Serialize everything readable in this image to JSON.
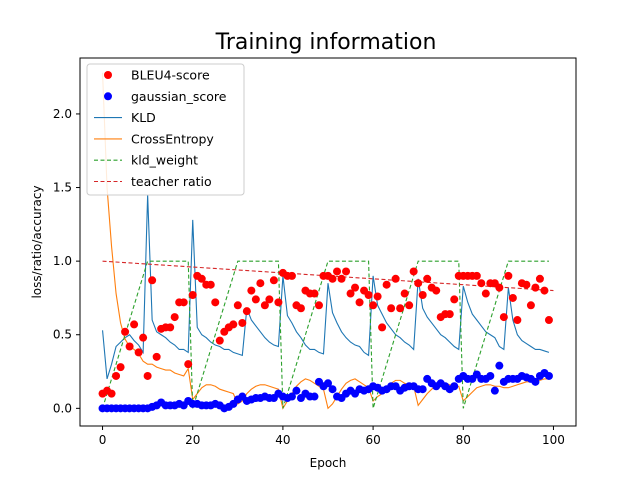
{
  "chart_data": {
    "type": "line",
    "title": "Training information",
    "xlabel": "Epoch",
    "ylabel": "loss/ratio/accuracy",
    "xlim": [
      -5,
      105
    ],
    "ylim": [
      -0.12,
      2.38
    ],
    "xticks": [
      0,
      20,
      40,
      60,
      80,
      100
    ],
    "yticks": [
      0.0,
      0.5,
      1.0,
      1.5,
      2.0
    ],
    "xtick_labels": [
      "0",
      "20",
      "40",
      "60",
      "80",
      "100"
    ],
    "ytick_labels": [
      "0.0",
      "0.5",
      "1.0",
      "1.5",
      "2.0"
    ],
    "grid": false,
    "legend_position": "top-left",
    "colors": {
      "bleu": "#ff0000",
      "gaussian": "#0000ff",
      "kld": "#1f77b4",
      "ce": "#ff7f0e",
      "kldw": "#2ca02c",
      "teacher": "#d62728"
    },
    "series": [
      {
        "name": "BLEU4-score",
        "kind": "scatter",
        "color_key": "bleu",
        "x": [
          0,
          1,
          2,
          3,
          4,
          5,
          6,
          7,
          8,
          9,
          10,
          11,
          12,
          13,
          14,
          15,
          16,
          17,
          18,
          19,
          20,
          21,
          22,
          23,
          24,
          25,
          26,
          27,
          28,
          29,
          30,
          31,
          32,
          33,
          34,
          35,
          36,
          37,
          38,
          39,
          40,
          41,
          42,
          43,
          44,
          45,
          46,
          47,
          48,
          49,
          50,
          51,
          52,
          53,
          54,
          55,
          56,
          57,
          58,
          59,
          60,
          61,
          62,
          63,
          64,
          65,
          66,
          67,
          68,
          69,
          70,
          71,
          72,
          73,
          74,
          75,
          76,
          77,
          78,
          79,
          80,
          81,
          82,
          83,
          84,
          85,
          86,
          87,
          88,
          89,
          90,
          91,
          92,
          93,
          94,
          95,
          96,
          97,
          98,
          99
        ],
        "y": [
          0.1,
          0.12,
          0.1,
          0.22,
          0.28,
          0.52,
          0.42,
          0.57,
          0.38,
          0.48,
          0.22,
          0.87,
          0.35,
          0.54,
          0.55,
          0.55,
          0.62,
          0.72,
          0.72,
          0.3,
          0.77,
          0.9,
          0.88,
          0.84,
          0.84,
          0.72,
          0.46,
          0.52,
          0.55,
          0.57,
          0.7,
          0.58,
          0.66,
          0.8,
          0.74,
          0.85,
          0.7,
          0.74,
          0.87,
          0.72,
          0.92,
          0.9,
          0.9,
          0.7,
          0.68,
          0.8,
          0.78,
          0.78,
          0.7,
          0.9,
          0.9,
          0.88,
          0.93,
          0.88,
          0.93,
          0.78,
          0.82,
          0.72,
          0.8,
          0.77,
          0.7,
          0.76,
          0.55,
          0.84,
          0.68,
          0.88,
          0.68,
          0.78,
          0.7,
          0.93,
          0.85,
          0.77,
          0.88,
          0.82,
          0.8,
          0.62,
          0.64,
          0.64,
          0.74,
          0.9,
          0.9,
          0.9,
          0.9,
          0.9,
          0.85,
          0.78,
          0.85,
          0.85,
          0.82,
          0.62,
          0.9,
          0.75,
          0.6,
          0.85,
          0.84,
          0.7,
          0.82,
          0.88,
          0.8,
          0.6
        ]
      },
      {
        "name": "gaussian_score",
        "kind": "scatter",
        "color_key": "gaussian",
        "x": [
          0,
          1,
          2,
          3,
          4,
          5,
          6,
          7,
          8,
          9,
          10,
          11,
          12,
          13,
          14,
          15,
          16,
          17,
          18,
          19,
          20,
          21,
          22,
          23,
          24,
          25,
          26,
          27,
          28,
          29,
          30,
          31,
          32,
          33,
          34,
          35,
          36,
          37,
          38,
          39,
          40,
          41,
          42,
          43,
          44,
          45,
          46,
          47,
          48,
          49,
          50,
          51,
          52,
          53,
          54,
          55,
          56,
          57,
          58,
          59,
          60,
          61,
          62,
          63,
          64,
          65,
          66,
          67,
          68,
          69,
          70,
          71,
          72,
          73,
          74,
          75,
          76,
          77,
          78,
          79,
          80,
          81,
          82,
          83,
          84,
          85,
          86,
          87,
          88,
          89,
          90,
          91,
          92,
          93,
          94,
          95,
          96,
          97,
          98,
          99
        ],
        "y": [
          0.0,
          0.0,
          0.0,
          0.0,
          0.0,
          0.0,
          0.0,
          0.0,
          0.0,
          0.0,
          0.0,
          0.01,
          0.02,
          0.04,
          0.02,
          0.02,
          0.02,
          0.03,
          0.02,
          0.05,
          0.03,
          0.03,
          0.02,
          0.02,
          0.02,
          0.03,
          0.02,
          0.0,
          0.01,
          0.03,
          0.06,
          0.08,
          0.05,
          0.06,
          0.07,
          0.07,
          0.08,
          0.07,
          0.07,
          0.1,
          0.08,
          0.07,
          0.08,
          0.12,
          0.07,
          0.1,
          0.08,
          0.08,
          0.18,
          0.15,
          0.17,
          0.13,
          0.08,
          0.07,
          0.1,
          0.12,
          0.1,
          0.13,
          0.12,
          0.13,
          0.15,
          0.14,
          0.12,
          0.13,
          0.15,
          0.15,
          0.12,
          0.14,
          0.15,
          0.15,
          0.13,
          0.13,
          0.2,
          0.17,
          0.15,
          0.17,
          0.15,
          0.13,
          0.15,
          0.2,
          0.22,
          0.2,
          0.2,
          0.23,
          0.2,
          0.2,
          0.22,
          0.12,
          0.29,
          0.18,
          0.2,
          0.2,
          0.2,
          0.22,
          0.21,
          0.2,
          0.18,
          0.22,
          0.24,
          0.22
        ]
      },
      {
        "name": "KLD",
        "kind": "line",
        "color_key": "kld",
        "x": [
          0,
          1,
          2,
          3,
          4,
          5,
          6,
          7,
          8,
          9,
          10,
          11,
          12,
          13,
          14,
          15,
          16,
          17,
          18,
          19,
          20,
          21,
          22,
          23,
          24,
          25,
          26,
          27,
          28,
          29,
          30,
          31,
          32,
          33,
          34,
          35,
          36,
          37,
          38,
          39,
          40,
          41,
          42,
          43,
          44,
          45,
          46,
          47,
          48,
          49,
          50,
          51,
          52,
          53,
          54,
          55,
          56,
          57,
          58,
          59,
          60,
          61,
          62,
          63,
          64,
          65,
          66,
          67,
          68,
          69,
          70,
          71,
          72,
          73,
          74,
          75,
          76,
          77,
          78,
          79,
          80,
          81,
          82,
          83,
          84,
          85,
          86,
          87,
          88,
          89,
          90,
          91,
          92,
          93,
          94,
          95,
          96,
          97,
          98,
          99
        ],
        "y": [
          0.53,
          0.2,
          0.3,
          0.42,
          0.45,
          0.48,
          0.5,
          0.46,
          0.43,
          0.38,
          1.45,
          0.6,
          0.52,
          0.5,
          0.48,
          0.45,
          0.43,
          0.4,
          0.4,
          0.38,
          1.28,
          0.55,
          0.5,
          0.48,
          0.45,
          0.43,
          0.42,
          0.4,
          0.4,
          0.38,
          0.37,
          0.36,
          0.68,
          0.6,
          0.56,
          0.52,
          0.48,
          0.45,
          0.43,
          0.42,
          0.9,
          0.63,
          0.58,
          0.52,
          0.48,
          0.43,
          0.4,
          0.4,
          0.38,
          0.37,
          0.85,
          0.65,
          0.58,
          0.52,
          0.48,
          0.45,
          0.43,
          0.42,
          0.38,
          0.36,
          0.9,
          0.7,
          0.64,
          0.58,
          0.54,
          0.5,
          0.48,
          0.45,
          0.43,
          0.4,
          0.88,
          0.68,
          0.62,
          0.58,
          0.54,
          0.5,
          0.48,
          0.45,
          0.42,
          0.4,
          0.83,
          0.72,
          0.64,
          0.6,
          0.56,
          0.52,
          0.5,
          0.48,
          0.42,
          0.4,
          0.82,
          0.6,
          0.5,
          0.46,
          0.44,
          0.42,
          0.4,
          0.4,
          0.39,
          0.38
        ]
      },
      {
        "name": "CrossEntropy",
        "kind": "line",
        "color_key": "ce",
        "x": [
          0,
          1,
          2,
          3,
          4,
          5,
          6,
          7,
          8,
          9,
          10,
          11,
          12,
          13,
          14,
          15,
          16,
          17,
          18,
          19,
          20,
          21,
          22,
          23,
          24,
          25,
          26,
          27,
          28,
          29,
          30,
          31,
          32,
          33,
          34,
          35,
          36,
          37,
          38,
          39,
          40,
          41,
          42,
          43,
          44,
          45,
          46,
          47,
          48,
          49,
          50,
          51,
          52,
          53,
          54,
          55,
          56,
          57,
          58,
          59,
          60,
          61,
          62,
          63,
          64,
          65,
          66,
          67,
          68,
          69,
          70,
          71,
          72,
          73,
          74,
          75,
          76,
          77,
          78,
          79,
          80,
          81,
          82,
          83,
          84,
          85,
          86,
          87,
          88,
          89,
          90,
          91,
          92,
          93,
          94,
          95,
          96,
          97,
          98,
          99
        ],
        "y": [
          2.28,
          1.5,
          1.1,
          0.78,
          0.58,
          0.47,
          0.42,
          0.4,
          0.37,
          0.32,
          0.3,
          0.3,
          0.28,
          0.27,
          0.26,
          0.26,
          0.24,
          0.23,
          0.22,
          0.27,
          0.06,
          0.1,
          0.14,
          0.16,
          0.16,
          0.15,
          0.13,
          0.12,
          0.11,
          0.1,
          0.03,
          0.05,
          0.1,
          0.13,
          0.15,
          0.16,
          0.16,
          0.15,
          0.14,
          0.13,
          0.0,
          0.05,
          0.1,
          0.15,
          0.18,
          0.2,
          0.19,
          0.17,
          0.15,
          0.13,
          0.0,
          0.03,
          0.08,
          0.13,
          0.17,
          0.19,
          0.2,
          0.18,
          0.16,
          0.14,
          0.05,
          0.08,
          0.1,
          0.14,
          0.17,
          0.19,
          0.19,
          0.17,
          0.16,
          0.15,
          0.02,
          0.06,
          0.1,
          0.13,
          0.16,
          0.17,
          0.17,
          0.16,
          0.15,
          0.15,
          0.05,
          0.08,
          0.11,
          0.14,
          0.15,
          0.16,
          0.16,
          0.15,
          0.15,
          0.14,
          0.14,
          0.15,
          0.16,
          0.17,
          0.18,
          0.18,
          0.19,
          0.19,
          0.2,
          0.2
        ]
      },
      {
        "name": "kld_weight",
        "kind": "line",
        "dashed": true,
        "color_key": "kldw",
        "x": [
          0,
          1,
          2,
          3,
          4,
          5,
          6,
          7,
          8,
          9,
          10,
          11,
          12,
          13,
          14,
          15,
          16,
          17,
          18,
          19,
          20,
          21,
          22,
          23,
          24,
          25,
          26,
          27,
          28,
          29,
          30,
          31,
          32,
          33,
          34,
          35,
          36,
          37,
          38,
          39,
          40,
          41,
          42,
          43,
          44,
          45,
          46,
          47,
          48,
          49,
          50,
          51,
          52,
          53,
          54,
          55,
          56,
          57,
          58,
          59,
          60,
          61,
          62,
          63,
          64,
          65,
          66,
          67,
          68,
          69,
          70,
          71,
          72,
          73,
          74,
          75,
          76,
          77,
          78,
          79,
          80,
          81,
          82,
          83,
          84,
          85,
          86,
          87,
          88,
          89,
          90,
          91,
          92,
          93,
          94,
          95,
          96,
          97,
          98,
          99
        ],
        "y": [
          0.0,
          0.1,
          0.2,
          0.3,
          0.4,
          0.5,
          0.6,
          0.7,
          0.8,
          0.9,
          1.0,
          1.0,
          1.0,
          1.0,
          1.0,
          1.0,
          1.0,
          1.0,
          1.0,
          1.0,
          0.0,
          0.1,
          0.2,
          0.3,
          0.4,
          0.5,
          0.6,
          0.7,
          0.8,
          0.9,
          1.0,
          1.0,
          1.0,
          1.0,
          1.0,
          1.0,
          1.0,
          1.0,
          1.0,
          1.0,
          0.0,
          0.1,
          0.2,
          0.3,
          0.4,
          0.5,
          0.6,
          0.7,
          0.8,
          0.9,
          1.0,
          1.0,
          1.0,
          1.0,
          1.0,
          1.0,
          1.0,
          1.0,
          1.0,
          1.0,
          0.0,
          0.1,
          0.2,
          0.3,
          0.4,
          0.5,
          0.6,
          0.7,
          0.8,
          0.9,
          1.0,
          1.0,
          1.0,
          1.0,
          1.0,
          1.0,
          1.0,
          1.0,
          1.0,
          1.0,
          0.0,
          0.1,
          0.2,
          0.3,
          0.4,
          0.5,
          0.6,
          0.7,
          0.8,
          0.9,
          1.0,
          1.0,
          1.0,
          1.0,
          1.0,
          1.0,
          1.0,
          1.0,
          1.0,
          1.0
        ]
      },
      {
        "name": "teacher ratio",
        "kind": "line",
        "dashed": true,
        "color_key": "teacher",
        "x": [
          0,
          100
        ],
        "y": [
          1.0,
          0.8
        ]
      }
    ]
  }
}
